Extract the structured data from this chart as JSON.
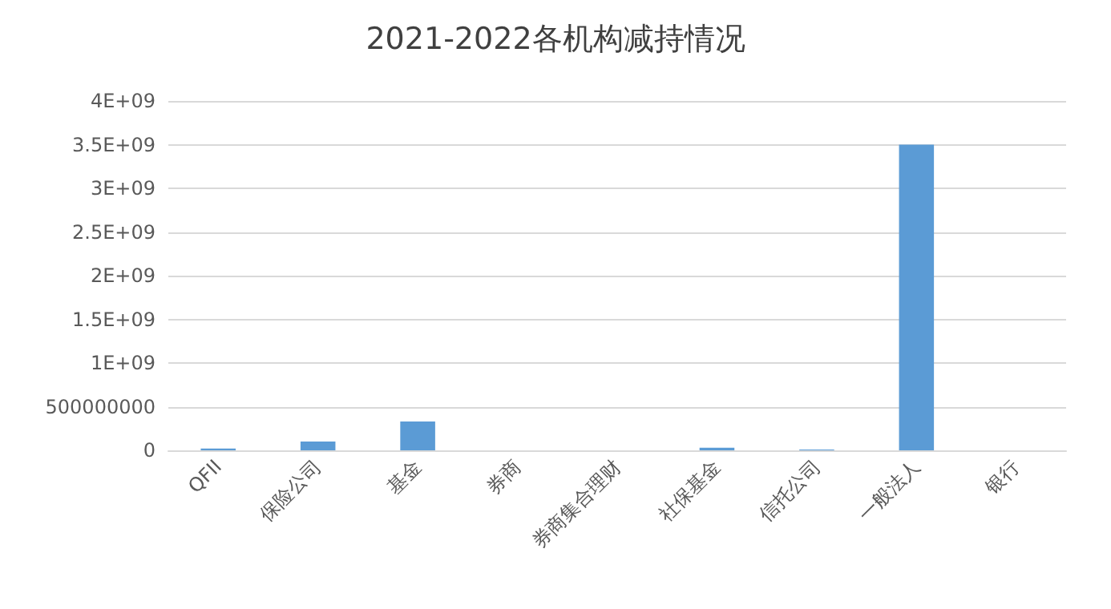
{
  "chart_data": {
    "type": "bar",
    "title": "2021-2022各机构减持情况",
    "categories": [
      "QFII",
      "保险公司",
      "基金",
      "券商",
      "券商集合理财",
      "社保基金",
      "信托公司",
      "一般法人",
      "银行"
    ],
    "values": [
      20000000,
      100000000,
      330000000,
      0,
      0,
      30000000,
      10000000,
      3500000000,
      0
    ],
    "color": "#5b9bd5",
    "ylim": [
      0,
      4000000000
    ],
    "yticks": [
      0,
      500000000,
      {
        "value": 1000000000,
        "label": "1E+09"
      },
      {
        "value": 1500000000,
        "label": "1.5E+09"
      },
      {
        "value": 2000000000,
        "label": "2E+09"
      },
      {
        "value": 2500000000,
        "label": "2.5E+09"
      },
      {
        "value": 3000000000,
        "label": "3E+09"
      },
      {
        "value": 3500000000,
        "label": "3.5E+09"
      },
      {
        "value": 4000000000,
        "label": "4E+09"
      }
    ],
    "grid": "y"
  }
}
